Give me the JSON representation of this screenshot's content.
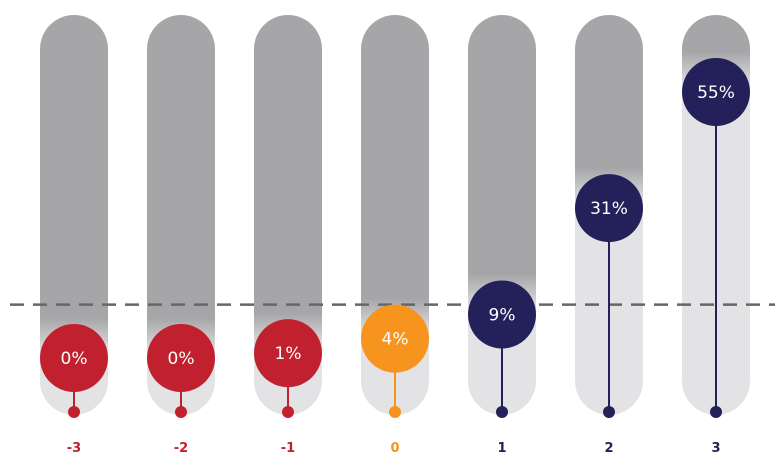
{
  "chart_data": {
    "type": "lollipop",
    "categories": [
      "-3",
      "-2",
      "-1",
      "0",
      "1",
      "2",
      "3"
    ],
    "values": [
      0,
      0,
      1,
      4,
      9,
      31,
      55
    ],
    "value_labels": [
      "0%",
      "0%",
      "1%",
      "4%",
      "9%",
      "31%",
      "55%"
    ],
    "ylim": [
      0,
      60
    ],
    "reference_line": 4,
    "title": "",
    "xlabel": "",
    "ylabel": "",
    "grid": false,
    "legend": "none",
    "colors": {
      "negative": "#c1202f",
      "neutral": "#f7941d",
      "positive": "#24205a",
      "track_top": "#a6a6a8",
      "track_bottom": "#e3e3e5",
      "reference_line": "#666666"
    }
  }
}
